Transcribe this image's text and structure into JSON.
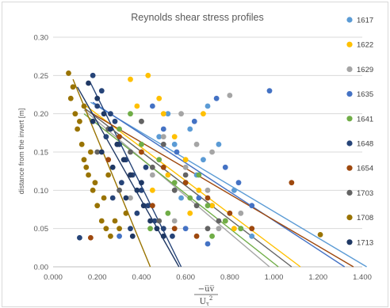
{
  "chart_data": {
    "type": "scatter",
    "title": "Reynolds shear stress profiles",
    "xlabel": {
      "numerator": "−u̅v̅",
      "denominator_base": "U",
      "denominator_sub": "τ",
      "denominator_sup": "2"
    },
    "ylabel": "distance from the invert [m]",
    "xlim": [
      0,
      1.4
    ],
    "ylim": [
      0,
      0.3
    ],
    "x_ticks": [
      "0.000",
      "0.200",
      "0.400",
      "0.600",
      "0.800",
      "1.000",
      "1.200",
      "1.400"
    ],
    "y_ticks": [
      "0.00",
      "0.05",
      "0.10",
      "0.15",
      "0.20",
      "0.25",
      "0.30"
    ],
    "grid": "horizontal",
    "legend_position": "right",
    "series": [
      {
        "name": "1617",
        "color": "#5b9bd5",
        "trend": [
          [
            0.17,
            0.215
          ],
          [
            1.42,
            0.0
          ]
        ],
        "points": [
          [
            0.52,
            0.2
          ],
          [
            0.62,
            0.18
          ],
          [
            0.7,
            0.21
          ],
          [
            0.75,
            0.16
          ],
          [
            0.82,
            0.1
          ],
          [
            0.78,
            0.06
          ],
          [
            0.85,
            0.05
          ],
          [
            0.9,
            0.04
          ],
          [
            0.65,
            0.12
          ],
          [
            0.58,
            0.09
          ],
          [
            0.72,
            0.08
          ],
          [
            0.68,
            0.14
          ],
          [
            0.55,
            0.16
          ],
          [
            0.48,
            0.17
          ],
          [
            0.6,
            0.11
          ]
        ]
      },
      {
        "name": "1622",
        "color": "#ffc000",
        "trend": [
          [
            0.15,
            0.21
          ],
          [
            1.12,
            0.0
          ]
        ],
        "points": [
          [
            0.35,
            0.245
          ],
          [
            0.43,
            0.25
          ],
          [
            0.48,
            0.22
          ],
          [
            0.5,
            0.2
          ],
          [
            0.55,
            0.17
          ],
          [
            0.6,
            0.14
          ],
          [
            0.66,
            0.1
          ],
          [
            0.72,
            0.08
          ],
          [
            0.78,
            0.06
          ],
          [
            0.82,
            0.05
          ],
          [
            0.4,
            0.15
          ],
          [
            0.52,
            0.12
          ],
          [
            0.68,
            0.2
          ],
          [
            0.45,
            0.1
          ],
          [
            0.62,
            0.07
          ],
          [
            0.38,
            0.21
          ]
        ]
      },
      {
        "name": "1629",
        "color": "#a5a5a5",
        "trend": [
          [
            0.14,
            0.205
          ],
          [
            0.98,
            0.0
          ]
        ],
        "points": [
          [
            0.4,
            0.19
          ],
          [
            0.5,
            0.17
          ],
          [
            0.6,
            0.13
          ],
          [
            0.7,
            0.1
          ],
          [
            0.8,
            0.224
          ],
          [
            0.85,
            0.07
          ],
          [
            0.75,
            0.05
          ],
          [
            0.55,
            0.06
          ],
          [
            0.65,
            0.16
          ],
          [
            0.45,
            0.12
          ],
          [
            0.35,
            0.09
          ],
          [
            0.58,
            0.2
          ],
          [
            0.72,
            0.15
          ]
        ]
      },
      {
        "name": "1635",
        "color": "#4472c4",
        "trend": [
          [
            0.18,
            0.215
          ],
          [
            1.32,
            0.0
          ]
        ],
        "points": [
          [
            0.98,
            0.23
          ],
          [
            0.74,
            0.22
          ],
          [
            0.64,
            0.19
          ],
          [
            0.84,
            0.11
          ],
          [
            0.9,
            0.08
          ],
          [
            0.7,
            0.03
          ],
          [
            0.6,
            0.05
          ],
          [
            0.5,
            0.18
          ],
          [
            0.56,
            0.15
          ],
          [
            0.78,
            0.13
          ],
          [
            0.45,
            0.21
          ],
          [
            0.66,
            0.09
          ],
          [
            0.3,
            0.04
          ]
        ]
      },
      {
        "name": "1641",
        "color": "#70ad47",
        "trend": [
          [
            0.14,
            0.2
          ],
          [
            1.02,
            0.0
          ]
        ],
        "points": [
          [
            0.3,
            0.18
          ],
          [
            0.4,
            0.16
          ],
          [
            0.48,
            0.14
          ],
          [
            0.55,
            0.11
          ],
          [
            0.62,
            0.09
          ],
          [
            0.7,
            0.08
          ],
          [
            0.78,
            0.06
          ],
          [
            0.85,
            0.05
          ],
          [
            0.35,
            0.2
          ],
          [
            0.52,
            0.07
          ],
          [
            0.66,
            0.12
          ],
          [
            0.44,
            0.05
          ],
          [
            0.72,
            0.04
          ]
        ]
      },
      {
        "name": "1648",
        "color": "#264478",
        "trend": [
          [
            0.17,
            0.24
          ],
          [
            0.58,
            0.0
          ]
        ],
        "points": [
          [
            0.18,
            0.25
          ],
          [
            0.22,
            0.23
          ],
          [
            0.26,
            0.2
          ],
          [
            0.28,
            0.19
          ],
          [
            0.3,
            0.16
          ],
          [
            0.33,
            0.14
          ],
          [
            0.36,
            0.12
          ],
          [
            0.4,
            0.1
          ],
          [
            0.43,
            0.08
          ],
          [
            0.46,
            0.06
          ],
          [
            0.5,
            0.05
          ],
          [
            0.54,
            0.04
          ],
          [
            0.2,
            0.21
          ],
          [
            0.24,
            0.17
          ],
          [
            0.31,
            0.11
          ],
          [
            0.38,
            0.07
          ],
          [
            0.12,
            0.038
          ],
          [
            0.27,
            0.09
          ],
          [
            0.35,
            0.05
          ],
          [
            0.42,
            0.13
          ]
        ]
      },
      {
        "name": "1654",
        "color": "#9e480e",
        "trend": [
          [
            0.15,
            0.205
          ],
          [
            1.36,
            0.0
          ]
        ],
        "points": [
          [
            0.17,
            0.038
          ],
          [
            0.3,
            0.17
          ],
          [
            0.4,
            0.15
          ],
          [
            0.5,
            0.13
          ],
          [
            0.6,
            0.11
          ],
          [
            0.7,
            0.09
          ],
          [
            0.8,
            0.07
          ],
          [
            0.9,
            0.05
          ],
          [
            1.08,
            0.11
          ],
          [
            0.55,
            0.05
          ],
          [
            0.45,
            0.08
          ],
          [
            0.35,
            0.12
          ],
          [
            0.65,
            0.04
          ],
          [
            0.25,
            0.14
          ]
        ]
      },
      {
        "name": "1703",
        "color": "#636363",
        "trend": [
          [
            0.13,
            0.21
          ],
          [
            1.08,
            0.0
          ]
        ],
        "points": [
          [
            0.25,
            0.18
          ],
          [
            0.35,
            0.15
          ],
          [
            0.45,
            0.13
          ],
          [
            0.55,
            0.1
          ],
          [
            0.65,
            0.08
          ],
          [
            0.75,
            0.06
          ],
          [
            0.4,
            0.19
          ],
          [
            0.5,
            0.16
          ],
          [
            0.6,
            0.12
          ],
          [
            0.3,
            0.1
          ],
          [
            0.7,
            0.05
          ],
          [
            0.2,
            0.15
          ],
          [
            0.48,
            0.06
          ]
        ]
      },
      {
        "name": "1708",
        "color": "#997300",
        "trend": [
          [
            0.09,
            0.245
          ],
          [
            0.44,
            0.0
          ]
        ],
        "points": [
          [
            0.07,
            0.253
          ],
          [
            0.08,
            0.22
          ],
          [
            0.09,
            0.235
          ],
          [
            0.1,
            0.2
          ],
          [
            0.11,
            0.18
          ],
          [
            0.13,
            0.16
          ],
          [
            0.14,
            0.14
          ],
          [
            0.16,
            0.12
          ],
          [
            0.18,
            0.1
          ],
          [
            0.2,
            0.08
          ],
          [
            0.22,
            0.06
          ],
          [
            0.24,
            0.05
          ],
          [
            0.26,
            0.04
          ],
          [
            0.12,
            0.19
          ],
          [
            0.15,
            0.13
          ],
          [
            0.19,
            0.11
          ],
          [
            0.23,
            0.09
          ],
          [
            0.28,
            0.06
          ],
          [
            0.3,
            0.05
          ],
          [
            1.21,
            0.042
          ],
          [
            0.33,
            0.07
          ],
          [
            0.17,
            0.15
          ],
          [
            0.25,
            0.12
          ],
          [
            0.14,
            0.21
          ]
        ]
      },
      {
        "name": "1713",
        "color": "#1f3864",
        "trend": [
          [
            0.11,
            0.235
          ],
          [
            0.57,
            0.0
          ]
        ],
        "points": [
          [
            0.16,
            0.24
          ],
          [
            0.2,
            0.22
          ],
          [
            0.23,
            0.2
          ],
          [
            0.26,
            0.18
          ],
          [
            0.29,
            0.16
          ],
          [
            0.32,
            0.14
          ],
          [
            0.35,
            0.12
          ],
          [
            0.38,
            0.1
          ],
          [
            0.41,
            0.08
          ],
          [
            0.44,
            0.06
          ],
          [
            0.47,
            0.05
          ],
          [
            0.5,
            0.04
          ],
          [
            0.18,
            0.19
          ],
          [
            0.27,
            0.13
          ],
          [
            0.33,
            0.09
          ],
          [
            0.22,
            0.15
          ],
          [
            0.4,
            0.11
          ],
          [
            0.36,
            0.04
          ]
        ]
      }
    ]
  }
}
